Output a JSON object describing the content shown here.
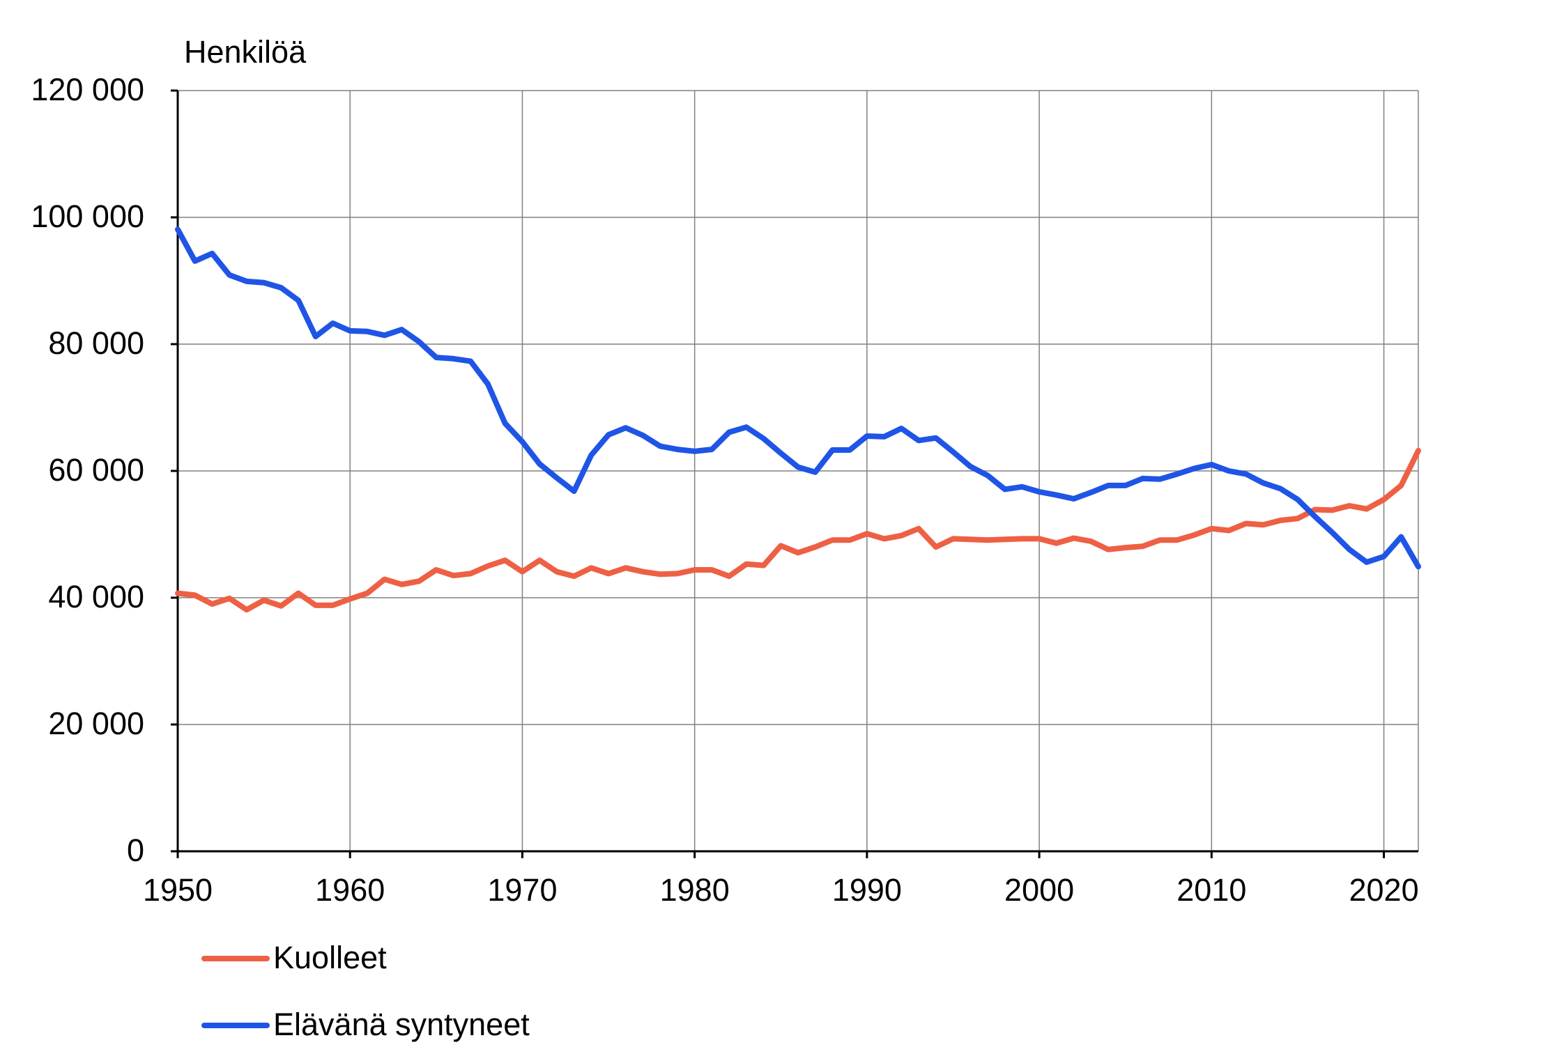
{
  "chart_data": {
    "type": "line",
    "ylabel": "Henkilöä",
    "xlabel": "",
    "xlim": [
      1950,
      2022
    ],
    "ylim": [
      0,
      120000
    ],
    "yticks": [
      0,
      20000,
      40000,
      60000,
      80000,
      100000,
      120000
    ],
    "ytick_labels": [
      "0",
      "20 000",
      "40 000",
      "60 000",
      "80 000",
      "100 000",
      "120 000"
    ],
    "xticks": [
      1950,
      1960,
      1970,
      1980,
      1990,
      2000,
      2010,
      2020
    ],
    "xtick_labels": [
      "1950",
      "1960",
      "1970",
      "1980",
      "1990",
      "2000",
      "2010",
      "2020"
    ],
    "grid": true,
    "legend_position": "bottom-left",
    "x": [
      1950,
      1951,
      1952,
      1953,
      1954,
      1955,
      1956,
      1957,
      1958,
      1959,
      1960,
      1961,
      1962,
      1963,
      1964,
      1965,
      1966,
      1967,
      1968,
      1969,
      1970,
      1971,
      1972,
      1973,
      1974,
      1975,
      1976,
      1977,
      1978,
      1979,
      1980,
      1981,
      1982,
      1983,
      1984,
      1985,
      1986,
      1987,
      1988,
      1989,
      1990,
      1991,
      1992,
      1993,
      1994,
      1995,
      1996,
      1997,
      1998,
      1999,
      2000,
      2001,
      2002,
      2003,
      2004,
      2005,
      2006,
      2007,
      2008,
      2009,
      2010,
      2011,
      2012,
      2013,
      2014,
      2015,
      2016,
      2017,
      2018,
      2019,
      2020,
      2021,
      2022
    ],
    "series": [
      {
        "name": "Kuolleet",
        "color": "#ee6044",
        "values": [
          40700,
          40400,
          39000,
          39900,
          38100,
          39600,
          38700,
          40700,
          38800,
          38800,
          39800,
          40700,
          42900,
          42100,
          42600,
          44400,
          43500,
          43800,
          45000,
          45900,
          44100,
          45900,
          44100,
          43400,
          44700,
          43800,
          44700,
          44100,
          43700,
          43800,
          44400,
          44400,
          43400,
          45300,
          45100,
          48200,
          47100,
          48000,
          49100,
          49100,
          50100,
          49300,
          49800,
          50900,
          48000,
          49300,
          49200,
          49100,
          49200,
          49300,
          49300,
          48600,
          49400,
          48900,
          47600,
          47900,
          48100,
          49100,
          49100,
          49900,
          50900,
          50600,
          51700,
          51500,
          52200,
          52500,
          53900,
          53800,
          54500,
          54000,
          55500,
          57700,
          63200
        ]
      },
      {
        "name": "Elävänä syntyneet",
        "color": "#1f55e6",
        "values": [
          98100,
          93100,
          94300,
          90900,
          89900,
          89700,
          88900,
          86900,
          81200,
          83300,
          82100,
          82000,
          81400,
          82300,
          80400,
          77900,
          77700,
          77300,
          73700,
          67500,
          64600,
          61100,
          58900,
          56800,
          62500,
          65700,
          66800,
          65600,
          63900,
          63400,
          63100,
          63400,
          66100,
          66900,
          65100,
          62800,
          60600,
          59800,
          63300,
          63300,
          65500,
          65400,
          66700,
          64800,
          65200,
          63000,
          60700,
          59300,
          57100,
          57500,
          56700,
          56200,
          55600,
          56600,
          57700,
          57700,
          58800,
          58700,
          59500,
          60400,
          61000,
          60000,
          59500,
          58100,
          57200,
          55500,
          52800,
          50300,
          47600,
          45600,
          46500,
          49600,
          44900
        ]
      }
    ]
  }
}
